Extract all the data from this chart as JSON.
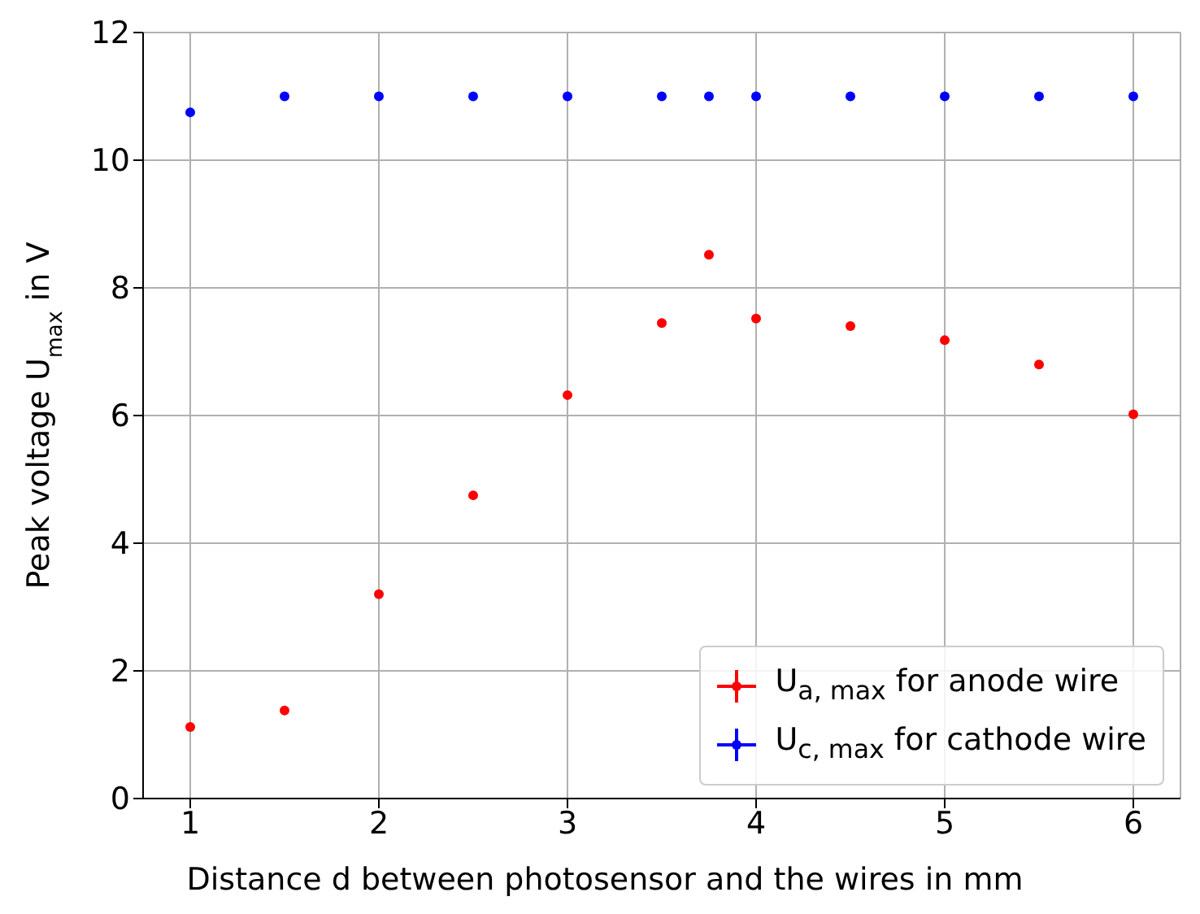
{
  "chart_data": {
    "type": "scatter",
    "xlabel": "Distance d between photosensor and the wires in mm",
    "ylabel": "Peak voltage U$_{max}$ in V",
    "series": [
      {
        "name": "U$_{a, max}$ for anode wire",
        "color": "#ff0000",
        "x": [
          1,
          1.5,
          2,
          2.5,
          3,
          3.5,
          3.75,
          4,
          4.5,
          5,
          5.5,
          6
        ],
        "values": [
          1.12,
          1.38,
          3.2,
          4.75,
          6.32,
          7.45,
          8.52,
          7.52,
          7.4,
          7.18,
          6.8,
          6.02
        ]
      },
      {
        "name": "U$_{c, max}$ for cathode wire",
        "color": "#0000ff",
        "x": [
          1,
          1.5,
          2,
          2.5,
          3,
          3.5,
          3.75,
          4,
          4.5,
          5,
          5.5,
          6
        ],
        "values": [
          10.75,
          11,
          11,
          11,
          11,
          11,
          11,
          11,
          11,
          11,
          11,
          11
        ]
      }
    ],
    "xlim": [
      0.75,
      6.25
    ],
    "xticks": [
      1,
      2,
      3,
      4,
      5,
      6
    ],
    "ylim": [
      0,
      12
    ],
    "yticks": [
      0,
      2,
      4,
      6,
      8,
      10,
      12
    ],
    "grid": true,
    "legend": "bottom right",
    "marker": "circle"
  }
}
